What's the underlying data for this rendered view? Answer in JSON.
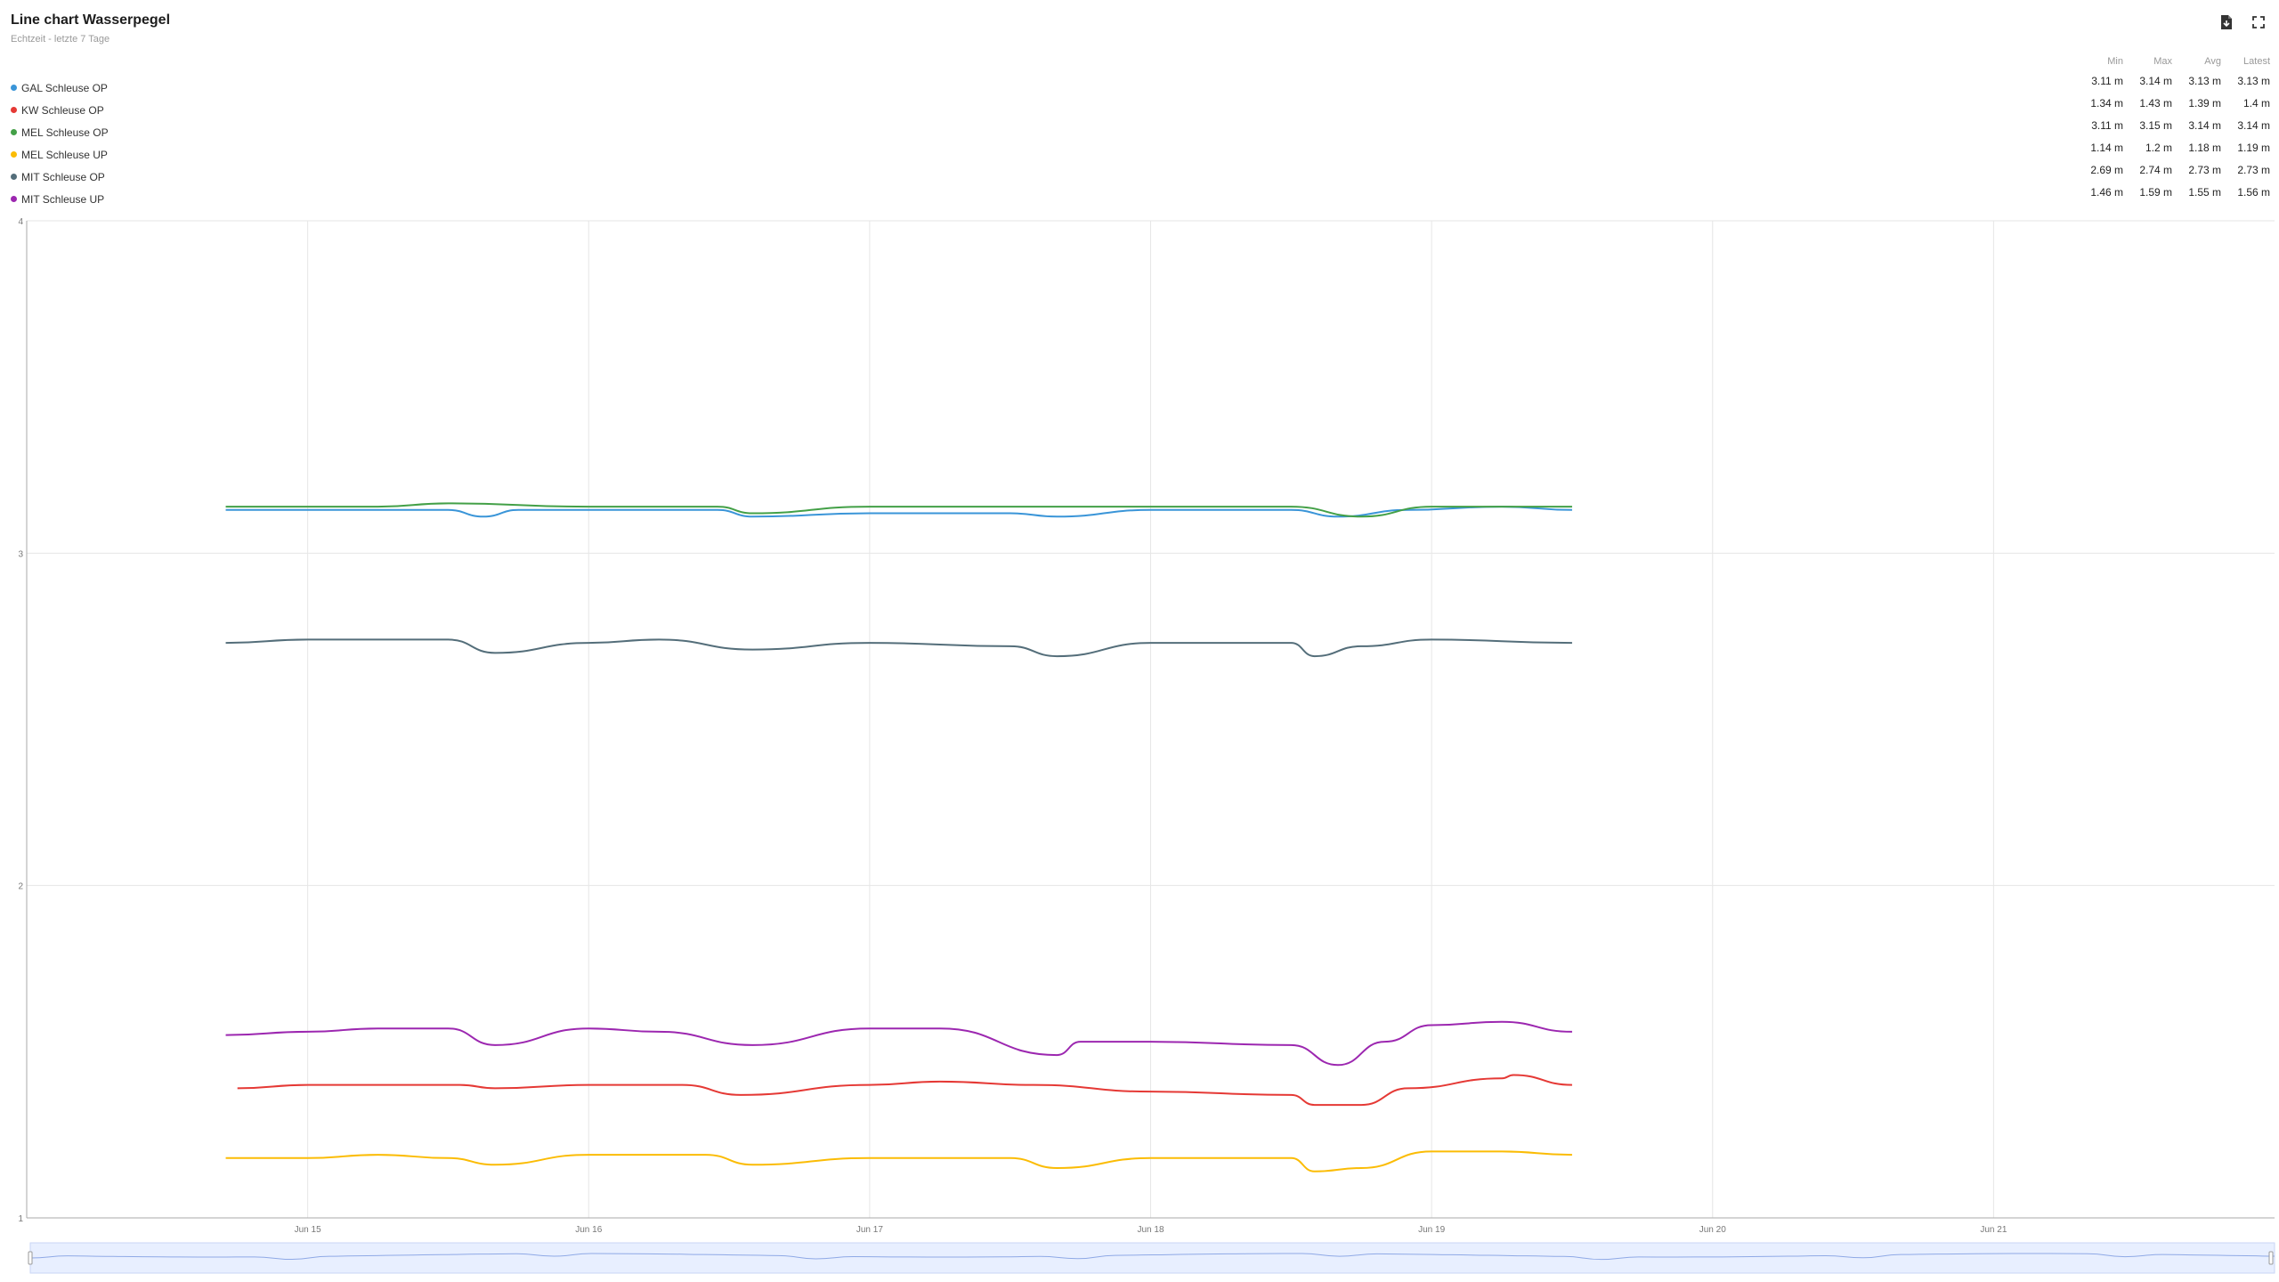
{
  "header": {
    "title": "Line chart Wasserpegel",
    "subtitle": "Echtzeit - letzte 7 Tage"
  },
  "toolbar": {
    "export_icon": "file-download-icon",
    "fullscreen_icon": "fullscreen-icon"
  },
  "stats_header": [
    "Min",
    "Max",
    "Avg",
    "Latest"
  ],
  "series_meta": [
    {
      "name": "GAL Schleuse OP",
      "color": "#3a95d8",
      "min": "3.11 m",
      "max": "3.14 m",
      "avg": "3.13 m",
      "latest": "3.13 m"
    },
    {
      "name": "KW Schleuse OP",
      "color": "#e53935",
      "min": "1.34 m",
      "max": "1.43 m",
      "avg": "1.39 m",
      "latest": "1.4 m"
    },
    {
      "name": "MEL Schleuse OP",
      "color": "#43a047",
      "min": "3.11 m",
      "max": "3.15 m",
      "avg": "3.14 m",
      "latest": "3.14 m"
    },
    {
      "name": "MEL Schleuse UP",
      "color": "#fbbc05",
      "min": "1.14 m",
      "max": "1.2 m",
      "avg": "1.18 m",
      "latest": "1.19 m"
    },
    {
      "name": "MIT Schleuse OP",
      "color": "#546e7a",
      "min": "2.69 m",
      "max": "2.74 m",
      "avg": "2.73 m",
      "latest": "2.73 m"
    },
    {
      "name": "MIT Schleuse UP",
      "color": "#9c27b0",
      "min": "1.46 m",
      "max": "1.59 m",
      "avg": "1.55 m",
      "latest": "1.56 m"
    }
  ],
  "chart_data": {
    "type": "line",
    "ylim": [
      1,
      4
    ],
    "yticks": [
      1,
      2,
      3,
      4
    ],
    "xlim": [
      "2024-06-14",
      "2024-06-22"
    ],
    "xticks": [
      {
        "label": "Jun 15",
        "day": "2024-06-15"
      },
      {
        "label": "Jun 16",
        "day": "2024-06-16"
      },
      {
        "label": "Jun 17",
        "day": "2024-06-17"
      },
      {
        "label": "Jun 18",
        "day": "2024-06-18"
      },
      {
        "label": "Jun 19",
        "day": "2024-06-19"
      },
      {
        "label": "Jun 20",
        "day": "2024-06-20"
      },
      {
        "label": "Jun 21",
        "day": "2024-06-21"
      }
    ],
    "grid": true,
    "legend": "top-left",
    "series": [
      {
        "name": "GAL Schleuse OP",
        "x": [
          "2024-06-14 17:00",
          "2024-06-15 00:00",
          "2024-06-15 06:00",
          "2024-06-15 12:00",
          "2024-06-15 15:00",
          "2024-06-15 18:00",
          "2024-06-16 00:00",
          "2024-06-16 06:00",
          "2024-06-16 11:00",
          "2024-06-16 14:00",
          "2024-06-17 00:00",
          "2024-06-17 12:00",
          "2024-06-17 16:00",
          "2024-06-18 00:00",
          "2024-06-18 12:00",
          "2024-06-18 16:00",
          "2024-06-18 22:00",
          "2024-06-19 06:00",
          "2024-06-19 12:00"
        ],
        "y": [
          3.13,
          3.13,
          3.13,
          3.13,
          3.11,
          3.13,
          3.13,
          3.13,
          3.13,
          3.11,
          3.12,
          3.12,
          3.11,
          3.13,
          3.13,
          3.11,
          3.13,
          3.14,
          3.13
        ]
      },
      {
        "name": "KW Schleuse OP",
        "x": [
          "2024-06-14 18:00",
          "2024-06-15 00:00",
          "2024-06-15 06:00",
          "2024-06-15 13:00",
          "2024-06-15 16:00",
          "2024-06-16 00:00",
          "2024-06-16 08:00",
          "2024-06-16 13:00",
          "2024-06-17 00:00",
          "2024-06-17 06:00",
          "2024-06-17 14:00",
          "2024-06-18 00:00",
          "2024-06-18 12:00",
          "2024-06-18 14:00",
          "2024-06-18 18:00",
          "2024-06-18 22:00",
          "2024-06-19 06:00",
          "2024-06-19 07:00",
          "2024-06-19 12:00"
        ],
        "y": [
          1.39,
          1.4,
          1.4,
          1.4,
          1.39,
          1.4,
          1.4,
          1.37,
          1.4,
          1.41,
          1.4,
          1.38,
          1.37,
          1.34,
          1.34,
          1.39,
          1.42,
          1.43,
          1.4
        ]
      },
      {
        "name": "MEL Schleuse OP",
        "x": [
          "2024-06-14 17:00",
          "2024-06-15 00:00",
          "2024-06-15 06:00",
          "2024-06-15 12:00",
          "2024-06-16 00:00",
          "2024-06-16 11:00",
          "2024-06-16 14:00",
          "2024-06-17 00:00",
          "2024-06-17 12:00",
          "2024-06-18 00:00",
          "2024-06-18 12:00",
          "2024-06-18 18:00",
          "2024-06-19 00:00",
          "2024-06-19 12:00"
        ],
        "y": [
          3.14,
          3.14,
          3.14,
          3.15,
          3.14,
          3.14,
          3.12,
          3.14,
          3.14,
          3.14,
          3.14,
          3.11,
          3.14,
          3.14
        ]
      },
      {
        "name": "MEL Schleuse UP",
        "x": [
          "2024-06-14 17:00",
          "2024-06-15 00:00",
          "2024-06-15 06:00",
          "2024-06-15 12:00",
          "2024-06-15 16:00",
          "2024-06-16 00:00",
          "2024-06-16 10:00",
          "2024-06-16 14:00",
          "2024-06-17 00:00",
          "2024-06-17 12:00",
          "2024-06-17 16:00",
          "2024-06-18 00:00",
          "2024-06-18 12:00",
          "2024-06-18 14:00",
          "2024-06-18 18:00",
          "2024-06-19 00:00",
          "2024-06-19 06:00",
          "2024-06-19 12:00"
        ],
        "y": [
          1.18,
          1.18,
          1.19,
          1.18,
          1.16,
          1.19,
          1.19,
          1.16,
          1.18,
          1.18,
          1.15,
          1.18,
          1.18,
          1.14,
          1.15,
          1.2,
          1.2,
          1.19
        ]
      },
      {
        "name": "MIT Schleuse OP",
        "x": [
          "2024-06-14 17:00",
          "2024-06-15 00:00",
          "2024-06-15 06:00",
          "2024-06-15 12:00",
          "2024-06-15 16:00",
          "2024-06-16 00:00",
          "2024-06-16 06:00",
          "2024-06-16 14:00",
          "2024-06-17 00:00",
          "2024-06-17 12:00",
          "2024-06-17 16:00",
          "2024-06-18 00:00",
          "2024-06-18 12:00",
          "2024-06-18 14:00",
          "2024-06-18 18:00",
          "2024-06-19 00:00",
          "2024-06-19 12:00"
        ],
        "y": [
          2.73,
          2.74,
          2.74,
          2.74,
          2.7,
          2.73,
          2.74,
          2.71,
          2.73,
          2.72,
          2.69,
          2.73,
          2.73,
          2.69,
          2.72,
          2.74,
          2.73
        ]
      },
      {
        "name": "MIT Schleuse UP",
        "x": [
          "2024-06-14 17:00",
          "2024-06-15 00:00",
          "2024-06-15 06:00",
          "2024-06-15 12:00",
          "2024-06-15 16:00",
          "2024-06-16 00:00",
          "2024-06-16 06:00",
          "2024-06-16 14:00",
          "2024-06-17 00:00",
          "2024-06-17 06:00",
          "2024-06-17 16:00",
          "2024-06-17 18:00",
          "2024-06-18 00:00",
          "2024-06-18 12:00",
          "2024-06-18 16:00",
          "2024-06-18 20:00",
          "2024-06-19 00:00",
          "2024-06-19 06:00",
          "2024-06-19 12:00"
        ],
        "y": [
          1.55,
          1.56,
          1.57,
          1.57,
          1.52,
          1.57,
          1.56,
          1.52,
          1.57,
          1.57,
          1.49,
          1.53,
          1.53,
          1.52,
          1.46,
          1.53,
          1.58,
          1.59,
          1.56
        ]
      }
    ]
  }
}
